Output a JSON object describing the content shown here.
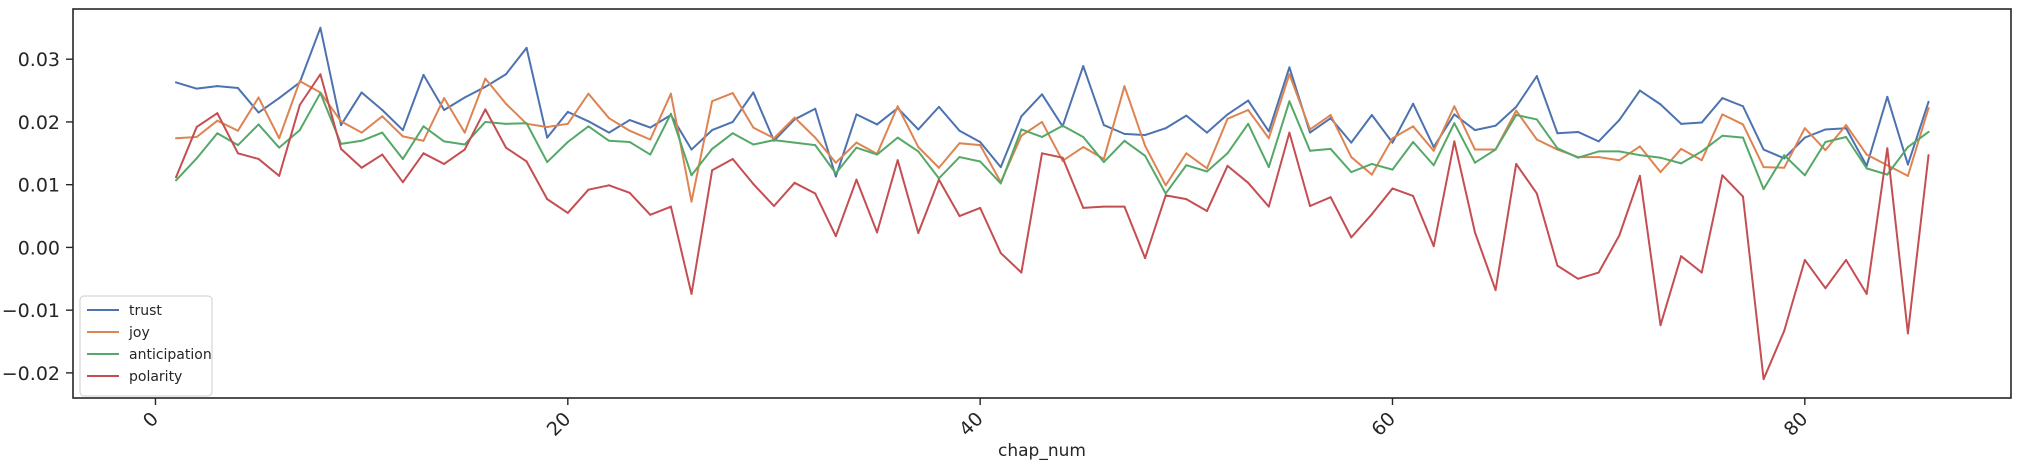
{
  "chart_data": {
    "type": "line",
    "title": "",
    "xlabel": "chap_num",
    "ylabel": "",
    "xlim": [
      -4,
      90
    ],
    "ylim": [
      -0.024,
      0.038
    ],
    "x_ticks": [
      0,
      20,
      40,
      60,
      80
    ],
    "x_tick_labels": [
      "0",
      "20",
      "40",
      "60",
      "80"
    ],
    "y_ticks": [
      -0.02,
      -0.01,
      0.0,
      0.01,
      0.02,
      0.03
    ],
    "y_tick_labels": [
      "−0.02",
      "−0.01",
      "0.00",
      "0.01",
      "0.02",
      "0.03"
    ],
    "grid": false,
    "legend_position": "lower-left",
    "x_start": 1,
    "series": [
      {
        "name": "trust",
        "color": "#4C72B0",
        "values": [
          0.0263,
          0.0253,
          0.0257,
          0.0254,
          0.0215,
          0.0238,
          0.0263,
          0.035,
          0.0195,
          0.0247,
          0.0219,
          0.0187,
          0.0275,
          0.0219,
          0.0239,
          0.0256,
          0.0276,
          0.0318,
          0.0175,
          0.0216,
          0.0201,
          0.0183,
          0.0203,
          0.0191,
          0.0211,
          0.0156,
          0.0187,
          0.02,
          0.0247,
          0.017,
          0.0204,
          0.0221,
          0.0113,
          0.0212,
          0.0196,
          0.0222,
          0.0188,
          0.0224,
          0.0186,
          0.0168,
          0.0128,
          0.0209,
          0.0244,
          0.0193,
          0.0289,
          0.0195,
          0.0181,
          0.0179,
          0.019,
          0.021,
          0.0183,
          0.0212,
          0.0234,
          0.0185,
          0.0287,
          0.0183,
          0.0206,
          0.0167,
          0.0211,
          0.0167,
          0.0229,
          0.016,
          0.0212,
          0.0187,
          0.0194,
          0.0224,
          0.0273,
          0.0182,
          0.0184,
          0.0169,
          0.0203,
          0.025,
          0.0228,
          0.0197,
          0.0199,
          0.0238,
          0.0225,
          0.0156,
          0.0142,
          0.0175,
          0.0188,
          0.019,
          0.013,
          0.024,
          0.0132,
          0.0232
        ]
      },
      {
        "name": "joy",
        "color": "#DD8452",
        "values": [
          0.0174,
          0.0176,
          0.0202,
          0.0186,
          0.0239,
          0.0174,
          0.0265,
          0.0247,
          0.0201,
          0.0183,
          0.0209,
          0.0177,
          0.017,
          0.0238,
          0.0183,
          0.0269,
          0.0229,
          0.0197,
          0.0192,
          0.0197,
          0.0245,
          0.0206,
          0.0186,
          0.0172,
          0.0245,
          0.0073,
          0.0233,
          0.0246,
          0.0191,
          0.0174,
          0.0207,
          0.0175,
          0.0135,
          0.0167,
          0.0149,
          0.0225,
          0.016,
          0.0127,
          0.0166,
          0.0163,
          0.0104,
          0.0178,
          0.02,
          0.0138,
          0.016,
          0.0141,
          0.0257,
          0.0162,
          0.0099,
          0.015,
          0.0126,
          0.0205,
          0.0219,
          0.0174,
          0.0276,
          0.0188,
          0.0211,
          0.0144,
          0.0116,
          0.0174,
          0.0193,
          0.0154,
          0.0225,
          0.0156,
          0.0156,
          0.0218,
          0.0172,
          0.0156,
          0.0144,
          0.0144,
          0.0139,
          0.0161,
          0.012,
          0.0157,
          0.0139,
          0.0212,
          0.0196,
          0.0128,
          0.0127,
          0.019,
          0.0155,
          0.0195,
          0.0148,
          0.0131,
          0.0114,
          0.0222
        ]
      },
      {
        "name": "anticipation",
        "color": "#55A868",
        "values": [
          0.0107,
          0.0142,
          0.0182,
          0.0163,
          0.0196,
          0.0159,
          0.0187,
          0.0246,
          0.0165,
          0.017,
          0.0183,
          0.0141,
          0.0193,
          0.0169,
          0.0164,
          0.02,
          0.0197,
          0.0198,
          0.0136,
          0.0168,
          0.0193,
          0.017,
          0.0168,
          0.0148,
          0.0213,
          0.0115,
          0.0157,
          0.0182,
          0.0164,
          0.0171,
          0.0167,
          0.0163,
          0.0118,
          0.0159,
          0.0148,
          0.0175,
          0.0153,
          0.011,
          0.0144,
          0.0137,
          0.0102,
          0.0188,
          0.0176,
          0.0194,
          0.0176,
          0.0136,
          0.017,
          0.0146,
          0.0086,
          0.0131,
          0.0121,
          0.015,
          0.0197,
          0.0128,
          0.0233,
          0.0154,
          0.0157,
          0.012,
          0.0133,
          0.0124,
          0.0168,
          0.0131,
          0.0198,
          0.0135,
          0.0156,
          0.0211,
          0.0204,
          0.0158,
          0.0143,
          0.0153,
          0.0153,
          0.0147,
          0.0143,
          0.0134,
          0.0153,
          0.0178,
          0.0175,
          0.0093,
          0.0147,
          0.0115,
          0.0168,
          0.0176,
          0.0126,
          0.0116,
          0.016,
          0.0184
        ]
      },
      {
        "name": "polarity",
        "color": "#C44E52",
        "values": [
          0.0112,
          0.0192,
          0.0214,
          0.015,
          0.0141,
          0.0114,
          0.0227,
          0.0276,
          0.0157,
          0.0127,
          0.0148,
          0.0104,
          0.015,
          0.0133,
          0.0156,
          0.022,
          0.0159,
          0.0137,
          0.0077,
          0.0055,
          0.0092,
          0.0099,
          0.0087,
          0.0052,
          0.0065,
          -0.0074,
          0.0123,
          0.0141,
          0.0101,
          0.0066,
          0.0103,
          0.0086,
          0.0018,
          0.0108,
          0.0024,
          0.0139,
          0.0023,
          0.0108,
          0.005,
          0.0063,
          -0.0009,
          -0.004,
          0.015,
          0.0143,
          0.0063,
          0.0065,
          0.0065,
          -0.0017,
          0.0083,
          0.0077,
          0.0058,
          0.013,
          0.0103,
          0.0065,
          0.0183,
          0.0066,
          0.008,
          0.0016,
          0.0053,
          0.0094,
          0.0082,
          0.0002,
          0.0169,
          0.0024,
          -0.0068,
          0.0133,
          0.0086,
          -0.0029,
          -0.005,
          -0.004,
          0.0019,
          0.0114,
          -0.0124,
          -0.0014,
          -0.004,
          0.0115,
          0.0081,
          -0.021,
          -0.0133,
          -0.002,
          -0.0065,
          -0.002,
          -0.0074,
          0.0158,
          -0.0137,
          0.0147
        ]
      }
    ]
  }
}
